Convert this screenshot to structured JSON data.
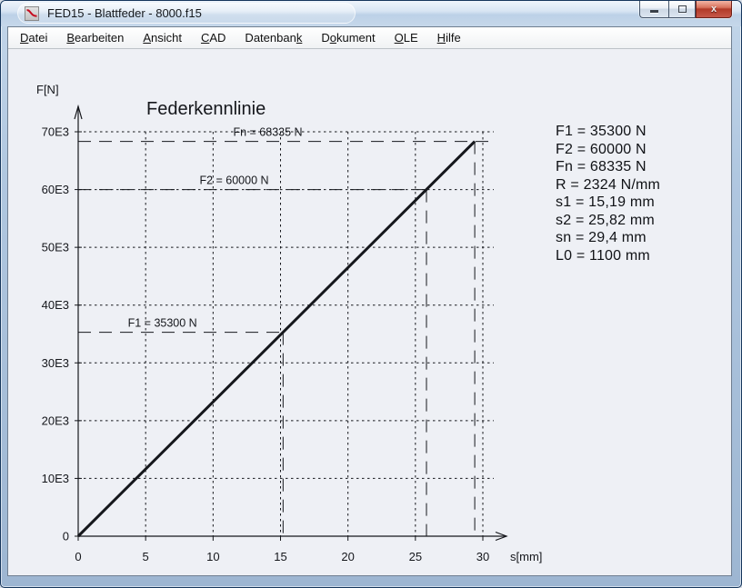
{
  "window": {
    "title": "FED15 - Blattfeder -  8000.f15",
    "controls": [
      {
        "name": "minimize",
        "icon": "minimize-icon"
      },
      {
        "name": "maximize",
        "icon": "maximize-icon"
      },
      {
        "name": "close",
        "icon": "close-icon",
        "glyph": "x"
      }
    ]
  },
  "icons": {
    "app": "spring-characteristic-icon",
    "minimize": "minimize-icon",
    "maximize": "maximize-icon",
    "close": "close-icon"
  },
  "colors": {
    "titlebar": "#c6d7ea",
    "close_button": "#b23a28",
    "client_bg": "#eef0f5",
    "chart_line": "#15171c"
  },
  "menu": {
    "items": [
      {
        "label": "Datei",
        "u": 0
      },
      {
        "label": "Bearbeiten",
        "u": 0
      },
      {
        "label": "Ansicht",
        "u": 0
      },
      {
        "label": "CAD",
        "u": 0
      },
      {
        "label": "Datenbank",
        "u": 8
      },
      {
        "label": "Dokument",
        "u": 1
      },
      {
        "label": "OLE",
        "u": 0
      },
      {
        "label": "Hilfe",
        "u": 0
      }
    ]
  },
  "results": [
    "F1 = 35300 N",
    "F2 = 60000 N",
    "Fn = 68335 N",
    "R = 2324 N/mm",
    "s1 = 15,19 mm",
    "s2 = 25,82 mm",
    "sn = 29,4 mm",
    "L0 = 1100 mm"
  ],
  "chart_data": {
    "type": "line",
    "title": "Federkennlinie",
    "xlabel": "s[mm]",
    "ylabel": "F[N]",
    "xlim": [
      0,
      30
    ],
    "ylim": [
      0,
      70000
    ],
    "xticks": [
      0,
      5,
      10,
      15,
      20,
      25,
      30
    ],
    "yticks": [
      0,
      10000,
      20000,
      30000,
      40000,
      50000,
      60000,
      70000
    ],
    "ytick_labels": [
      "0",
      "10E3",
      "20E3",
      "30E3",
      "40E3",
      "50E3",
      "60E3",
      "70E3"
    ],
    "grid": "dotted",
    "legend": "none",
    "series": [
      {
        "name": "Federkennlinie",
        "x": [
          0,
          29.4
        ],
        "y": [
          0,
          68335
        ]
      }
    ],
    "markers": [
      {
        "name": "F1",
        "label": "F1 = 35300 N",
        "s": 15.19,
        "F": 35300,
        "line_to_edge": false
      },
      {
        "name": "F2",
        "label": "F2 = 60000 N",
        "s": 25.82,
        "F": 60000,
        "line_to_edge": false
      },
      {
        "name": "Fn",
        "label": "Fn = 68335 N",
        "s": 29.4,
        "F": 68335,
        "line_to_edge": true
      }
    ]
  }
}
